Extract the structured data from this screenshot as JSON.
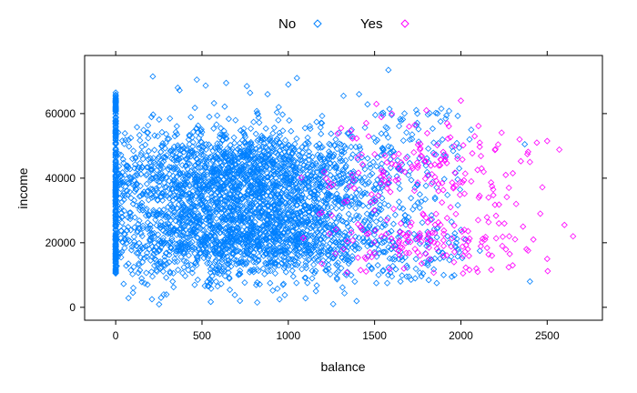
{
  "chart_data": {
    "type": "scatter",
    "xlabel": "balance",
    "ylabel": "income",
    "xlim": [
      -180,
      2820
    ],
    "ylim": [
      -4000,
      78000
    ],
    "x_ticks": [
      0,
      500,
      1000,
      1500,
      2000,
      2500
    ],
    "x_tick_labels": [
      "0",
      "500",
      "1000",
      "1500",
      "2000",
      "2500"
    ],
    "y_ticks": [
      0,
      20000,
      40000,
      60000
    ],
    "y_tick_labels": [
      "0",
      "20000",
      "40000",
      "60000"
    ],
    "legend_position": "top",
    "marker": "open-diamond",
    "series": [
      {
        "name": "No",
        "color": "#0080ff",
        "points": [
          [
            0,
            10500
          ],
          [
            0,
            14000
          ],
          [
            0,
            16000
          ],
          [
            0,
            18500
          ],
          [
            0,
            21000
          ],
          [
            0,
            24000
          ],
          [
            0,
            27000
          ],
          [
            0,
            30000
          ],
          [
            0,
            33000
          ],
          [
            0,
            36000
          ],
          [
            0,
            39000
          ],
          [
            0,
            42000
          ],
          [
            0,
            45000
          ],
          [
            0,
            48000
          ],
          [
            0,
            51000
          ],
          [
            0,
            54000
          ],
          [
            0,
            57000
          ],
          [
            0,
            60000
          ],
          [
            0,
            62500
          ],
          [
            0,
            66500
          ],
          [
            100,
            4500
          ],
          [
            210,
            2500
          ],
          [
            215,
            71500
          ],
          [
            330,
            8000
          ],
          [
            360,
            68000
          ],
          [
            470,
            70500
          ],
          [
            540,
            6500
          ],
          [
            640,
            69500
          ],
          [
            690,
            3800
          ],
          [
            720,
            2000
          ],
          [
            760,
            68500
          ],
          [
            820,
            1500
          ],
          [
            880,
            66000
          ],
          [
            910,
            5200
          ],
          [
            1000,
            69000
          ],
          [
            1050,
            71000
          ],
          [
            1100,
            2800
          ],
          [
            1160,
            5000
          ],
          [
            1260,
            1000
          ],
          [
            1320,
            65500
          ],
          [
            1410,
            66000
          ],
          [
            1510,
            7500
          ],
          [
            1580,
            73500
          ],
          [
            1650,
            8000
          ],
          [
            1700,
            9500
          ],
          [
            1780,
            10500
          ],
          [
            1860,
            7500
          ],
          [
            1900,
            10000
          ],
          [
            1930,
            20000
          ],
          [
            2000,
            24000
          ],
          [
            2050,
            52000
          ],
          [
            2060,
            55000
          ],
          [
            2110,
            17500
          ],
          [
            2370,
            50500
          ],
          [
            2400,
            8000
          ]
        ]
      },
      {
        "name": "Yes",
        "color": "#ff00ff",
        "points": [
          [
            1180,
            29000
          ],
          [
            1260,
            38000
          ],
          [
            1320,
            18000
          ],
          [
            1370,
            41000
          ],
          [
            1420,
            25000
          ],
          [
            1450,
            15000
          ],
          [
            1500,
            33000
          ],
          [
            1540,
            22000
          ],
          [
            1560,
            47000
          ],
          [
            1600,
            60000
          ],
          [
            1640,
            20000
          ],
          [
            1670,
            12000
          ],
          [
            1700,
            56000
          ],
          [
            1720,
            43000
          ],
          [
            1750,
            17000
          ],
          [
            1780,
            29000
          ],
          [
            1800,
            61000
          ],
          [
            1820,
            15000
          ],
          [
            1850,
            23000
          ],
          [
            1870,
            36000
          ],
          [
            1880,
            44000
          ],
          [
            1900,
            19000
          ],
          [
            1920,
            57000
          ],
          [
            1940,
            31000
          ],
          [
            1960,
            14000
          ],
          [
            1980,
            46000
          ],
          [
            2000,
            64000
          ],
          [
            2020,
            24000
          ],
          [
            2040,
            18000
          ],
          [
            2060,
            39000
          ],
          [
            2080,
            53000
          ],
          [
            2090,
            12000
          ],
          [
            2100,
            27000
          ],
          [
            2120,
            43000
          ],
          [
            2140,
            21000
          ],
          [
            2160,
            34000
          ],
          [
            2180,
            16000
          ],
          [
            2200,
            49000
          ],
          [
            2220,
            26000
          ],
          [
            2240,
            19000
          ],
          [
            2260,
            41000
          ],
          [
            2280,
            22000
          ],
          [
            2300,
            13000
          ],
          [
            2320,
            32000
          ],
          [
            2340,
            52000
          ],
          [
            2360,
            25000
          ],
          [
            2380,
            18000
          ],
          [
            2400,
            45000
          ],
          [
            2420,
            21000
          ],
          [
            2440,
            51000
          ],
          [
            2460,
            29000
          ],
          [
            2500,
            51500
          ],
          [
            2500,
            15000
          ],
          [
            2600,
            25500
          ],
          [
            2650,
            22000
          ]
        ]
      }
    ]
  }
}
